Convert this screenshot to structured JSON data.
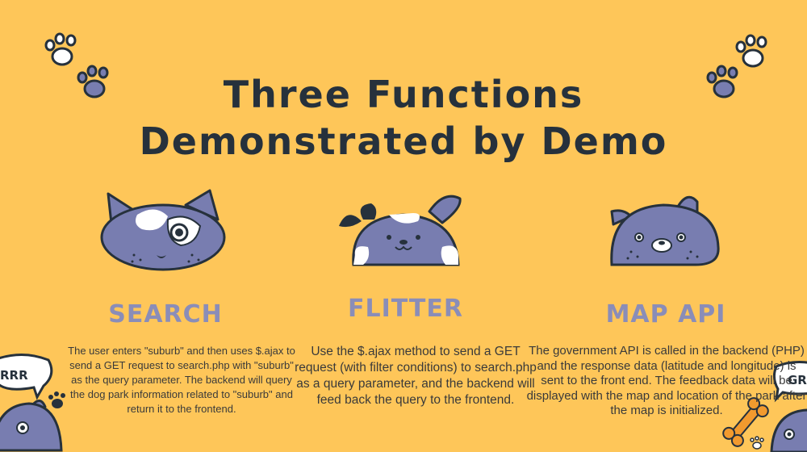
{
  "slide": {
    "title_line1": "Three Functions",
    "title_line2": "Demonstrated by Demo"
  },
  "features": [
    {
      "heading": "SEARCH",
      "description": "The user enters \"suburb\" and then uses $.ajax to send a GET request to search.php with \"suburb\" as the query parameter. The backend will query the dog park information related to \"suburb\" and return it to the frontend."
    },
    {
      "heading": "FLITTER",
      "description": "Use the $.ajax method to send a GET request (with filter conditions) to search.php as a query parameter, and the backend will feed back the query to the frontend."
    },
    {
      "heading": "MAP API",
      "description": "The government API is called in the backend (PHP) and the response data (latitude and longitude) is sent to the front end. The feedback data will be displayed with the map and location of the park after the map is initialized."
    }
  ],
  "decorations": {
    "bubble_left_text": "RRR",
    "bubble_right_text": "GR",
    "colors": {
      "background": "#FEC659",
      "title": "#26313C",
      "heading": "#8A8DB8",
      "cat_body": "#787DB0",
      "outline": "#26313C"
    }
  }
}
